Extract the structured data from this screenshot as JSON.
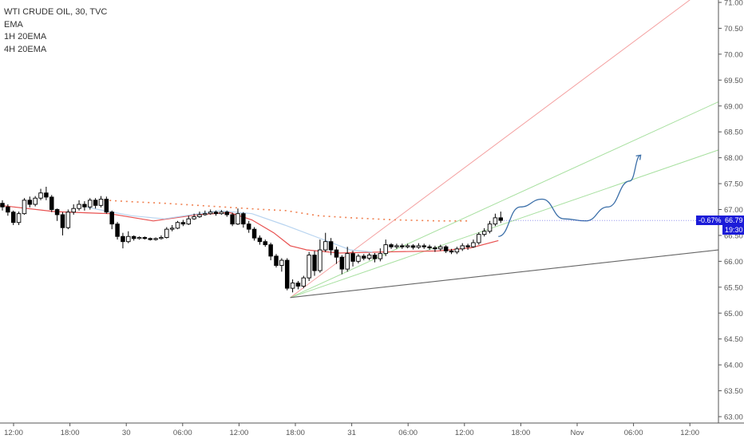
{
  "legend": {
    "symbol": "WTI CRUDE OIL, 30, TVC",
    "indicator_1": "EMA",
    "indicator_2": "1H 20EMA",
    "indicator_3": "4H 20EMA"
  },
  "price_badge": {
    "change": "-0.67%",
    "price": "66.79",
    "countdown": "19:30"
  },
  "colors": {
    "up_candle": "#ffffff",
    "down_candle": "#000000",
    "ema": "#e8504f",
    "ema_1h": "#b8d4f0",
    "ema_4h": "#f08050",
    "trend_red": "#f4a0a0",
    "trend_green": "#a8e0a0",
    "trend_gray": "#666666",
    "projection": "#3a6ea8",
    "badge": "#1c1cd8"
  },
  "chart_data": {
    "type": "candlestick",
    "title": "WTI CRUDE OIL, 30, TVC",
    "y_axis": {
      "ticks": [
        "71.00",
        "70.50",
        "70.00",
        "69.50",
        "69.00",
        "68.50",
        "68.00",
        "67.50",
        "67.00",
        "66.50",
        "66.00",
        "65.50",
        "65.00",
        "64.50",
        "64.00",
        "63.50",
        "63.00"
      ],
      "range": [
        62.95,
        71.05
      ]
    },
    "x_axis": {
      "ticks": [
        "12:00",
        "18:00",
        "30",
        "06:00",
        "12:00",
        "18:00",
        "31",
        "06:00",
        "12:00",
        "18:00",
        "Nov",
        "06:00",
        "12:00"
      ]
    },
    "last_price": 66.79,
    "last_change": "-0.67%",
    "candles": [
      [
        67.12,
        67.05,
        67.18,
        66.98
      ],
      [
        67.05,
        66.95,
        67.1,
        66.88
      ],
      [
        66.95,
        66.75,
        66.98,
        66.7
      ],
      [
        66.75,
        66.92,
        66.96,
        66.7
      ],
      [
        66.92,
        67.18,
        67.22,
        66.9
      ],
      [
        67.18,
        67.1,
        67.25,
        67.04
      ],
      [
        67.1,
        67.22,
        67.26,
        67.06
      ],
      [
        67.22,
        67.32,
        67.4,
        67.18
      ],
      [
        67.32,
        67.24,
        67.44,
        67.18
      ],
      [
        67.24,
        67.0,
        67.28,
        66.95
      ],
      [
        67.0,
        66.9,
        67.02,
        66.78
      ],
      [
        66.9,
        66.65,
        66.95,
        66.5
      ],
      [
        66.65,
        66.95,
        67.0,
        66.62
      ],
      [
        66.95,
        67.02,
        67.1,
        66.9
      ],
      [
        67.02,
        67.1,
        67.18,
        66.98
      ],
      [
        67.1,
        67.05,
        67.16,
        66.98
      ],
      [
        67.05,
        67.18,
        67.22,
        67.0
      ],
      [
        67.18,
        67.08,
        67.22,
        67.02
      ],
      [
        67.08,
        67.2,
        67.26,
        67.04
      ],
      [
        67.2,
        66.95,
        67.25,
        66.92
      ],
      [
        66.95,
        66.72,
        66.98,
        66.62
      ],
      [
        66.72,
        66.48,
        66.76,
        66.42
      ],
      [
        66.48,
        66.38,
        66.55,
        66.25
      ],
      [
        66.38,
        66.48,
        66.58,
        66.35
      ],
      [
        66.48,
        66.44,
        66.5,
        66.4
      ],
      [
        66.44,
        66.46,
        66.48,
        66.42
      ],
      [
        66.46,
        66.44,
        66.48,
        66.42
      ],
      [
        66.44,
        66.42,
        66.46,
        66.4
      ],
      [
        66.42,
        66.44,
        66.46,
        66.4
      ],
      [
        66.44,
        66.46,
        66.5,
        66.42
      ],
      [
        66.46,
        66.62,
        66.66,
        66.44
      ],
      [
        66.62,
        66.64,
        66.7,
        66.58
      ],
      [
        66.64,
        66.75,
        66.78,
        66.62
      ],
      [
        66.75,
        66.72,
        66.8,
        66.68
      ],
      [
        66.72,
        66.82,
        66.88,
        66.7
      ],
      [
        66.82,
        66.86,
        66.92,
        66.8
      ],
      [
        66.86,
        66.9,
        66.96,
        66.84
      ],
      [
        66.9,
        66.92,
        66.98,
        66.88
      ],
      [
        66.92,
        66.95,
        67.0,
        66.9
      ],
      [
        66.95,
        66.92,
        66.98,
        66.88
      ],
      [
        66.92,
        66.95,
        66.99,
        66.9
      ],
      [
        66.95,
        66.9,
        66.98,
        66.86
      ],
      [
        66.9,
        66.72,
        66.94,
        66.68
      ],
      [
        66.72,
        66.92,
        67.02,
        66.7
      ],
      [
        66.92,
        66.72,
        66.95,
        66.65
      ],
      [
        66.72,
        66.62,
        66.78,
        66.55
      ],
      [
        66.62,
        66.45,
        66.66,
        66.4
      ],
      [
        66.45,
        66.38,
        66.5,
        66.32
      ],
      [
        66.38,
        66.32,
        66.42,
        66.28
      ],
      [
        66.32,
        66.1,
        66.36,
        66.02
      ],
      [
        66.1,
        65.92,
        66.14,
        65.88
      ],
      [
        65.92,
        66.02,
        66.06,
        65.8
      ],
      [
        66.02,
        65.48,
        66.06,
        65.44
      ],
      [
        65.48,
        65.58,
        65.65,
        65.4
      ],
      [
        65.58,
        65.52,
        65.62,
        65.46
      ],
      [
        65.52,
        65.68,
        65.72,
        65.48
      ],
      [
        65.68,
        66.12,
        66.18,
        65.62
      ],
      [
        66.12,
        65.82,
        66.2,
        65.72
      ],
      [
        65.82,
        66.22,
        66.42,
        65.78
      ],
      [
        66.22,
        66.38,
        66.55,
        66.18
      ],
      [
        66.38,
        66.22,
        66.45,
        66.12
      ],
      [
        66.22,
        66.08,
        66.28,
        65.95
      ],
      [
        66.08,
        65.85,
        66.12,
        65.75
      ],
      [
        65.85,
        66.15,
        66.28,
        65.8
      ],
      [
        66.15,
        66.0,
        66.2,
        65.9
      ],
      [
        66.0,
        66.1,
        66.14,
        65.96
      ],
      [
        66.1,
        66.06,
        66.14,
        66.02
      ],
      [
        66.06,
        66.12,
        66.16,
        66.02
      ],
      [
        66.12,
        66.05,
        66.16,
        65.98
      ],
      [
        66.05,
        66.15,
        66.25,
        66.0
      ],
      [
        66.15,
        66.32,
        66.42,
        66.1
      ],
      [
        66.32,
        66.28,
        66.35,
        66.24
      ],
      [
        66.28,
        66.3,
        66.34,
        66.24
      ],
      [
        66.3,
        66.28,
        66.34,
        66.24
      ],
      [
        66.28,
        66.3,
        66.34,
        66.25
      ],
      [
        66.3,
        66.27,
        66.33,
        66.23
      ],
      [
        66.27,
        66.3,
        66.35,
        66.24
      ],
      [
        66.3,
        66.28,
        66.34,
        66.24
      ],
      [
        66.28,
        66.26,
        66.32,
        66.22
      ],
      [
        66.26,
        66.24,
        66.3,
        66.18
      ],
      [
        66.24,
        66.28,
        66.32,
        66.2
      ],
      [
        66.28,
        66.2,
        66.31,
        66.16
      ],
      [
        66.2,
        66.18,
        66.24,
        66.14
      ],
      [
        66.18,
        66.24,
        66.28,
        66.14
      ],
      [
        66.24,
        66.3,
        66.35,
        66.2
      ],
      [
        66.3,
        66.28,
        66.34,
        66.22
      ],
      [
        66.28,
        66.36,
        66.42,
        66.26
      ],
      [
        66.36,
        66.52,
        66.56,
        66.32
      ],
      [
        66.52,
        66.58,
        66.64,
        66.48
      ],
      [
        66.58,
        66.72,
        66.78,
        66.54
      ],
      [
        66.72,
        66.84,
        66.92,
        66.68
      ],
      [
        66.84,
        66.79,
        66.96,
        66.74
      ]
    ],
    "series": [
      {
        "name": "EMA",
        "type": "line",
        "values": [
          [
            0,
            67.08
          ],
          [
            10,
            66.96
          ],
          [
            20,
            66.92
          ],
          [
            28,
            66.78
          ],
          [
            36,
            66.9
          ],
          [
            42,
            66.94
          ],
          [
            46,
            66.8
          ],
          [
            50,
            66.55
          ],
          [
            53,
            66.3
          ],
          [
            56,
            66.22
          ],
          [
            62,
            66.16
          ],
          [
            70,
            66.18
          ],
          [
            80,
            66.2
          ],
          [
            86,
            66.26
          ],
          [
            91,
            66.4
          ]
        ]
      },
      {
        "name": "1H 20EMA",
        "type": "line",
        "values": [
          [
            16,
            67.04
          ],
          [
            24,
            66.88
          ],
          [
            30,
            66.82
          ],
          [
            40,
            66.98
          ],
          [
            46,
            66.92
          ],
          [
            52,
            66.7
          ],
          [
            58,
            66.46
          ],
          [
            64,
            66.22
          ],
          [
            68,
            66.18
          ]
        ]
      },
      {
        "name": "4H 20EMA",
        "type": "dots",
        "values": [
          [
            19,
            67.18
          ],
          [
            24,
            67.15
          ],
          [
            30,
            67.12
          ],
          [
            36,
            67.08
          ],
          [
            42,
            67.04
          ],
          [
            48,
            67.0
          ],
          [
            52,
            66.98
          ],
          [
            58,
            66.88
          ],
          [
            64,
            66.84
          ],
          [
            72,
            66.8
          ],
          [
            80,
            66.78
          ],
          [
            86,
            66.78
          ]
        ]
      }
    ],
    "trendlines": [
      {
        "name": "",
        "from": [
          53,
          65.3
        ],
        "to": [
          126,
          71.05
        ],
        "color": "trend_red"
      },
      {
        "name": "",
        "from": [
          53,
          65.3
        ],
        "to": [
          148,
          69.08
        ],
        "color": "trend_green"
      },
      {
        "name": "",
        "from": [
          53,
          65.3
        ],
        "to": [
          148,
          68.15
        ],
        "color": "trend_green"
      },
      {
        "name": "",
        "from": [
          53,
          65.3
        ],
        "to": [
          148,
          66.22
        ],
        "color": "trend_gray"
      }
    ],
    "projection": [
      [
        91,
        66.48
      ],
      [
        95,
        67.05
      ],
      [
        99,
        67.2
      ],
      [
        103,
        66.82
      ],
      [
        107,
        66.78
      ],
      [
        111,
        67.05
      ],
      [
        115,
        67.55
      ],
      [
        117,
        68.05
      ]
    ]
  }
}
